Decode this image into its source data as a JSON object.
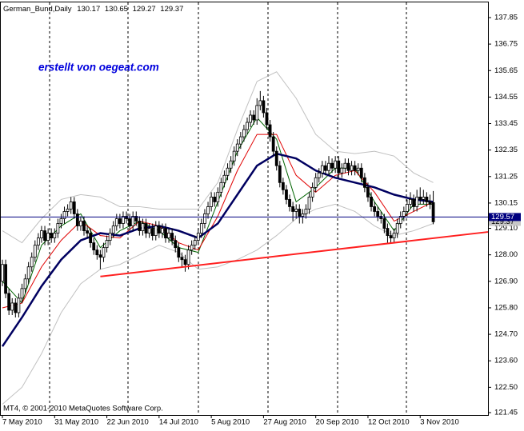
{
  "chart_data": {
    "type": "candlestick",
    "symbol": "German_Bund,Daily",
    "watermark": "erstellt von oegeat.com",
    "footer": "MT4, © 2001-2010 MetaQuotes Software Corp.",
    "categories": [
      "7 May 2010",
      null,
      null,
      null,
      null,
      null,
      null,
      null,
      null,
      null,
      null,
      null,
      null,
      null,
      null,
      null,
      "31 May 2010",
      null,
      null,
      null,
      null,
      null,
      null,
      null,
      null,
      null,
      null,
      null,
      null,
      null,
      null,
      null,
      "22 Jun 2010",
      null,
      null,
      null,
      null,
      null,
      null,
      null,
      null,
      null,
      null,
      null,
      null,
      null,
      null,
      null,
      "14 Jul 2010",
      null,
      null,
      null,
      null,
      null,
      null,
      null,
      null,
      null,
      null,
      null,
      null,
      null,
      null,
      null,
      "5 Aug 2010",
      null,
      null,
      null,
      null,
      null,
      null,
      null,
      null,
      null,
      null,
      null,
      null,
      null,
      null,
      null,
      "27 Aug 2010",
      null,
      null,
      null,
      null,
      null,
      null,
      null,
      null,
      null,
      null,
      null,
      null,
      null,
      null,
      null,
      "20 Sep 2010",
      null,
      null,
      null,
      null,
      null,
      null,
      null,
      null,
      null,
      null,
      null,
      null,
      null,
      null,
      null,
      "12 Oct 2010",
      null,
      null,
      null,
      null,
      null,
      null,
      null,
      null,
      null,
      null,
      null,
      null,
      null,
      null,
      null,
      "3 Nov 2010",
      null,
      null,
      null,
      null
    ],
    "candles": [
      [
        126.9,
        127.8,
        126.7,
        127.6
      ],
      [
        127.6,
        127.8,
        126.2,
        126.4
      ],
      [
        126.4,
        126.6,
        125.5,
        125.7
      ],
      [
        125.7,
        126.2,
        125.5,
        126.0
      ],
      [
        126.0,
        126.2,
        125.4,
        125.6
      ],
      [
        125.6,
        126.4,
        125.4,
        126.2
      ],
      [
        126.2,
        126.8,
        126.0,
        126.6
      ],
      [
        126.6,
        127.2,
        126.4,
        127.0
      ],
      [
        127.0,
        127.7,
        126.8,
        127.5
      ],
      [
        127.5,
        128.1,
        127.3,
        127.9
      ],
      [
        127.9,
        128.6,
        127.7,
        128.4
      ],
      [
        128.4,
        128.9,
        128.2,
        128.7
      ],
      [
        128.7,
        129.2,
        128.5,
        129.0
      ],
      [
        129.0,
        129.2,
        128.4,
        128.6
      ],
      [
        128.6,
        129.1,
        128.4,
        128.9
      ],
      [
        128.9,
        129.1,
        128.5,
        128.7
      ],
      [
        128.7,
        129.1,
        128.5,
        128.9
      ],
      [
        128.9,
        129.5,
        128.7,
        129.3
      ],
      [
        129.3,
        129.7,
        129.1,
        129.5
      ],
      [
        129.5,
        130.0,
        129.3,
        129.8
      ],
      [
        129.8,
        130.1,
        129.6,
        129.9
      ],
      [
        129.9,
        130.4,
        129.7,
        130.2
      ],
      [
        130.2,
        130.4,
        129.5,
        129.7
      ],
      [
        129.7,
        129.9,
        129.0,
        129.2
      ],
      [
        129.2,
        129.6,
        129.0,
        129.4
      ],
      [
        129.4,
        129.6,
        128.8,
        129.0
      ],
      [
        129.0,
        129.2,
        128.7,
        128.9
      ],
      [
        128.9,
        129.1,
        128.3,
        128.5
      ],
      [
        128.5,
        128.7,
        128.0,
        128.2
      ],
      [
        128.2,
        128.4,
        127.8,
        128.0
      ],
      [
        128.0,
        128.2,
        127.4,
        127.9
      ],
      [
        127.9,
        128.5,
        127.7,
        128.3
      ],
      [
        128.3,
        128.8,
        128.1,
        128.6
      ],
      [
        128.6,
        129.1,
        128.4,
        128.9
      ],
      [
        128.9,
        129.4,
        128.7,
        129.2
      ],
      [
        129.2,
        129.7,
        129.0,
        129.5
      ],
      [
        129.5,
        129.7,
        129.1,
        129.3
      ],
      [
        129.3,
        129.8,
        129.1,
        129.6
      ],
      [
        129.6,
        129.8,
        129.3,
        129.5
      ],
      [
        129.5,
        129.7,
        129.0,
        129.2
      ],
      [
        129.2,
        129.8,
        129.0,
        129.6
      ],
      [
        129.6,
        129.8,
        129.2,
        129.4
      ],
      [
        129.4,
        129.6,
        128.8,
        129.0
      ],
      [
        129.0,
        129.5,
        128.8,
        129.3
      ],
      [
        129.3,
        129.5,
        128.7,
        128.9
      ],
      [
        128.9,
        129.3,
        128.7,
        129.1
      ],
      [
        129.1,
        129.3,
        128.6,
        128.8
      ],
      [
        128.8,
        129.4,
        128.6,
        129.2
      ],
      [
        129.2,
        129.4,
        128.7,
        128.9
      ],
      [
        128.9,
        129.3,
        128.7,
        129.1
      ],
      [
        129.1,
        129.3,
        128.5,
        128.7
      ],
      [
        128.7,
        129.1,
        128.5,
        128.9
      ],
      [
        128.9,
        129.1,
        128.4,
        128.6
      ],
      [
        128.6,
        128.8,
        128.1,
        128.3
      ],
      [
        128.3,
        128.5,
        127.7,
        127.9
      ],
      [
        127.9,
        128.1,
        127.5,
        127.8
      ],
      [
        127.8,
        128.0,
        127.3,
        127.6
      ],
      [
        127.6,
        128.4,
        127.4,
        128.2
      ],
      [
        128.2,
        128.6,
        128.0,
        128.4
      ],
      [
        128.4,
        128.8,
        128.2,
        128.6
      ],
      [
        128.6,
        129.1,
        128.4,
        128.9
      ],
      [
        128.9,
        129.5,
        128.7,
        129.3
      ],
      [
        129.3,
        129.9,
        129.1,
        129.7
      ],
      [
        129.7,
        130.2,
        129.5,
        130.0
      ],
      [
        130.0,
        130.6,
        129.8,
        130.4
      ],
      [
        130.4,
        130.6,
        130.0,
        130.2
      ],
      [
        130.2,
        130.8,
        130.0,
        130.6
      ],
      [
        130.6,
        131.2,
        130.4,
        131.0
      ],
      [
        131.0,
        131.5,
        130.8,
        131.3
      ],
      [
        131.3,
        131.8,
        131.1,
        131.6
      ],
      [
        131.6,
        132.1,
        131.4,
        131.9
      ],
      [
        131.9,
        132.5,
        131.7,
        132.3
      ],
      [
        132.3,
        132.8,
        132.1,
        132.6
      ],
      [
        132.6,
        133.1,
        132.4,
        132.9
      ],
      [
        132.9,
        133.4,
        132.7,
        133.2
      ],
      [
        133.2,
        133.7,
        133.0,
        133.5
      ],
      [
        133.5,
        134.0,
        133.3,
        133.8
      ],
      [
        133.8,
        134.0,
        133.4,
        133.6
      ],
      [
        133.6,
        134.5,
        133.4,
        134.2
      ],
      [
        134.2,
        134.8,
        134.0,
        134.4
      ],
      [
        134.4,
        134.6,
        133.7,
        133.9
      ],
      [
        133.9,
        134.1,
        133.2,
        133.4
      ],
      [
        133.4,
        133.6,
        132.7,
        132.9
      ],
      [
        132.9,
        133.1,
        132.1,
        132.3
      ],
      [
        132.3,
        132.5,
        131.5,
        131.7
      ],
      [
        131.7,
        131.9,
        130.8,
        131.0
      ],
      [
        131.0,
        131.2,
        130.5,
        130.7
      ],
      [
        130.7,
        130.9,
        130.1,
        130.3
      ],
      [
        130.3,
        130.5,
        129.8,
        130.0
      ],
      [
        130.0,
        130.2,
        129.4,
        129.8
      ],
      [
        129.8,
        130.1,
        129.5,
        129.9
      ],
      [
        129.9,
        130.1,
        129.3,
        129.6
      ],
      [
        129.6,
        129.9,
        129.3,
        129.7
      ],
      [
        129.7,
        130.1,
        129.5,
        129.9
      ],
      [
        129.9,
        130.6,
        129.7,
        130.4
      ],
      [
        130.4,
        131.0,
        130.2,
        130.8
      ],
      [
        130.8,
        131.4,
        130.6,
        131.2
      ],
      [
        131.2,
        131.6,
        131.0,
        131.4
      ],
      [
        131.4,
        131.9,
        131.2,
        131.7
      ],
      [
        131.7,
        131.9,
        131.3,
        131.5
      ],
      [
        131.5,
        132.1,
        131.3,
        131.8
      ],
      [
        131.8,
        132.0,
        131.4,
        131.6
      ],
      [
        131.6,
        132.1,
        131.4,
        131.9
      ],
      [
        131.9,
        132.1,
        131.2,
        131.4
      ],
      [
        131.4,
        131.8,
        131.2,
        131.6
      ],
      [
        131.6,
        132.0,
        131.4,
        131.8
      ],
      [
        131.8,
        132.0,
        131.3,
        131.5
      ],
      [
        131.5,
        131.9,
        131.3,
        131.7
      ],
      [
        131.7,
        131.9,
        131.3,
        131.5
      ],
      [
        131.5,
        131.8,
        131.3,
        131.6
      ],
      [
        131.6,
        131.8,
        131.0,
        131.2
      ],
      [
        131.2,
        131.4,
        130.6,
        130.8
      ],
      [
        130.8,
        131.0,
        130.2,
        130.4
      ],
      [
        130.4,
        130.6,
        129.8,
        130.0
      ],
      [
        130.0,
        130.2,
        129.6,
        129.8
      ],
      [
        129.8,
        130.0,
        129.4,
        129.6
      ],
      [
        129.6,
        129.8,
        129.3,
        129.5
      ],
      [
        129.5,
        129.7,
        128.9,
        129.1
      ],
      [
        129.1,
        129.3,
        128.5,
        128.8
      ],
      [
        128.8,
        129.0,
        128.5,
        128.7
      ],
      [
        128.7,
        129.1,
        128.5,
        128.9
      ],
      [
        128.9,
        129.5,
        128.7,
        129.3
      ],
      [
        129.3,
        129.8,
        129.1,
        129.6
      ],
      [
        129.6,
        130.0,
        129.4,
        129.8
      ],
      [
        129.8,
        130.3,
        129.6,
        130.1
      ],
      [
        130.1,
        130.6,
        129.9,
        130.3
      ],
      [
        130.3,
        130.5,
        129.8,
        130.0
      ],
      [
        130.0,
        130.7,
        129.8,
        130.4
      ],
      [
        130.4,
        130.8,
        130.1,
        130.3
      ],
      [
        130.3,
        130.7,
        130.1,
        130.4
      ],
      [
        130.4,
        130.6,
        130.0,
        130.2
      ],
      [
        130.2,
        130.5,
        129.9,
        130.1
      ],
      [
        130.17,
        130.65,
        129.27,
        129.37
      ]
    ],
    "bull_color": "#ffffff",
    "bear_color": "#000000",
    "lines": [
      {
        "color": "#c0c0c0",
        "width": 1,
        "x": [
          0,
          6,
          12,
          18,
          24,
          30,
          36,
          42,
          48,
          54,
          60,
          66,
          72,
          78,
          84,
          90,
          96,
          102,
          108,
          114,
          120,
          126,
          132
        ],
        "values": [
          129.0,
          128.5,
          129.5,
          130.3,
          130.5,
          130.4,
          130.0,
          130.0,
          129.9,
          129.9,
          129.9,
          131.0,
          133.2,
          135.2,
          135.6,
          134.5,
          133.0,
          132.3,
          132.2,
          132.3,
          132.1,
          131.4,
          131.0
        ]
      },
      {
        "color": "#c0c0c0",
        "width": 1,
        "x": [
          0,
          6,
          12,
          18,
          24,
          30,
          36,
          42,
          48,
          54,
          60,
          66,
          72,
          78,
          84,
          90,
          96,
          102,
          108,
          114,
          120,
          126,
          132
        ],
        "values": [
          121.8,
          122.5,
          123.9,
          125.6,
          126.8,
          127.4,
          127.6,
          128.0,
          128.4,
          128.1,
          127.4,
          127.5,
          127.8,
          128.2,
          128.8,
          129.5,
          129.9,
          130.1,
          129.8,
          129.2,
          128.8,
          129.0,
          129.3
        ]
      },
      {
        "color": "#006400",
        "width": 1,
        "x": [
          0,
          6,
          12,
          18,
          24,
          30,
          36,
          42,
          48,
          54,
          60,
          66,
          72,
          78,
          84,
          90,
          96,
          102,
          108,
          114,
          120,
          126,
          132
        ],
        "values": [
          126.9,
          126.0,
          128.4,
          129.2,
          129.7,
          128.3,
          129.0,
          129.4,
          129.0,
          128.3,
          128.1,
          130.2,
          132.3,
          133.7,
          132.8,
          130.2,
          130.8,
          131.6,
          131.6,
          130.2,
          129.0,
          130.1,
          130.1
        ]
      },
      {
        "color": "#e00000",
        "width": 1,
        "x": [
          0,
          6,
          12,
          18,
          24,
          30,
          36,
          42,
          48,
          54,
          60,
          66,
          72,
          78,
          84,
          90,
          96,
          102,
          108,
          114,
          120,
          126,
          132
        ],
        "values": [
          125.8,
          126.0,
          127.5,
          128.6,
          129.4,
          128.8,
          128.7,
          129.4,
          129.2,
          128.5,
          128.2,
          129.6,
          131.5,
          133.0,
          133.0,
          131.3,
          130.6,
          131.3,
          131.5,
          130.6,
          129.4,
          129.8,
          130.2
        ]
      },
      {
        "color": "#000060",
        "width": 2.5,
        "x": [
          0,
          6,
          12,
          18,
          24,
          30,
          36,
          42,
          48,
          54,
          60,
          66,
          72,
          78,
          84,
          90,
          96,
          102,
          108,
          114,
          120,
          126,
          132
        ],
        "values": [
          124.2,
          125.4,
          126.7,
          127.8,
          128.6,
          128.9,
          128.8,
          129.1,
          129.2,
          129.0,
          128.7,
          129.3,
          130.5,
          131.7,
          132.2,
          132.0,
          131.5,
          131.2,
          131.0,
          130.8,
          130.5,
          130.3,
          130.2
        ]
      }
    ],
    "trendline": {
      "color": "#ff2020",
      "x": [
        30,
        149
      ],
      "values": [
        127.1,
        128.95
      ]
    },
    "bid_line": {
      "color": "#000080",
      "value": 129.57
    },
    "last_price": 129.37,
    "ylim": [
      121.35,
      138.48
    ],
    "yticks": [
      137.85,
      136.75,
      135.65,
      134.55,
      133.45,
      132.35,
      131.25,
      130.15,
      {
        "value": 129.1,
        "label": "129.10"
      },
      {
        "value": 128,
        "label": "128.00"
      },
      {
        "value": 126.9,
        "label": "126.90"
      },
      {
        "value": 125.8,
        "label": "125.80"
      },
      {
        "value": 124.7,
        "label": "124.70"
      },
      {
        "value": 123.6,
        "label": "123.60"
      },
      {
        "value": 122.5,
        "label": "122.50"
      },
      121.45
    ]
  }
}
